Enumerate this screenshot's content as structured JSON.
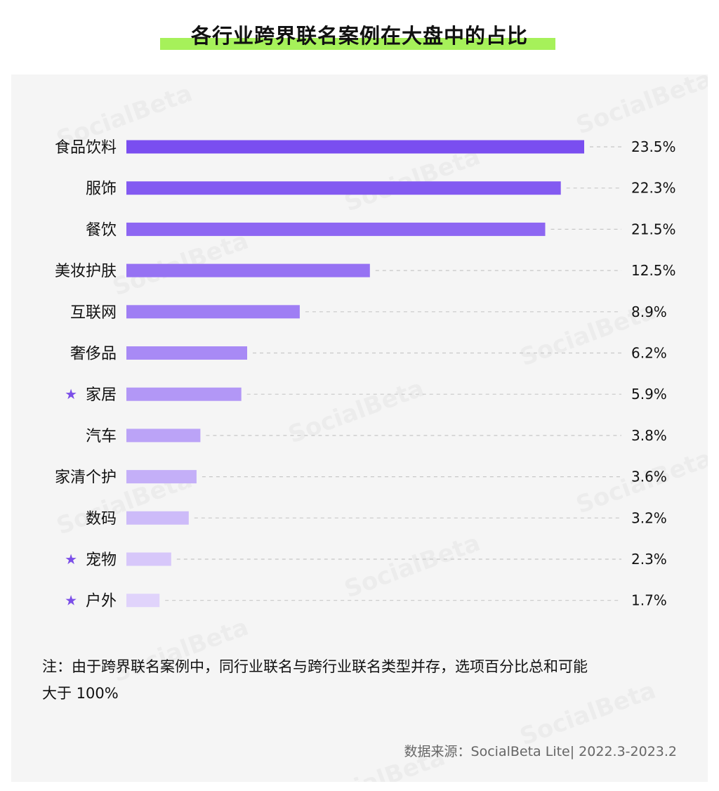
{
  "title": "各行业跨界联名案例在大盘中的占比",
  "watermark_text": "SocialBeta",
  "note": {
    "line1": "注：由于跨界联名案例中，同行业联名与跨行业联名类型并存，选项百分比总和可能",
    "line2": "大于 100%"
  },
  "source": "数据来源：SocialBeta Lite| 2022.3-2023.2",
  "colors": {
    "highlight": "#a6f15a",
    "star": "#7b4ee8",
    "bar_dark": "#7a4ef0",
    "bar_light": "#e0d3fb",
    "dash": "#c8c8c8"
  },
  "chart_data": {
    "type": "bar",
    "orientation": "horizontal",
    "categories": [
      "食品饮料",
      "服饰",
      "餐饮",
      "美妆护肤",
      "互联网",
      "奢侈品",
      "家居",
      "汽车",
      "家清个护",
      "数码",
      "宠物",
      "户外"
    ],
    "values": [
      23.5,
      22.3,
      21.5,
      12.5,
      8.9,
      6.2,
      5.9,
      3.8,
      3.6,
      3.2,
      2.3,
      1.7
    ],
    "value_labels": [
      "23.5%",
      "22.3%",
      "21.5%",
      "12.5%",
      "8.9%",
      "6.2%",
      "5.9%",
      "3.8%",
      "3.6%",
      "3.2%",
      "2.3%",
      "1.7%"
    ],
    "starred": [
      false,
      false,
      false,
      false,
      false,
      false,
      true,
      false,
      false,
      false,
      true,
      true
    ],
    "star_symbol": "★",
    "unit": "%",
    "xlim": [
      0,
      23.5
    ]
  }
}
